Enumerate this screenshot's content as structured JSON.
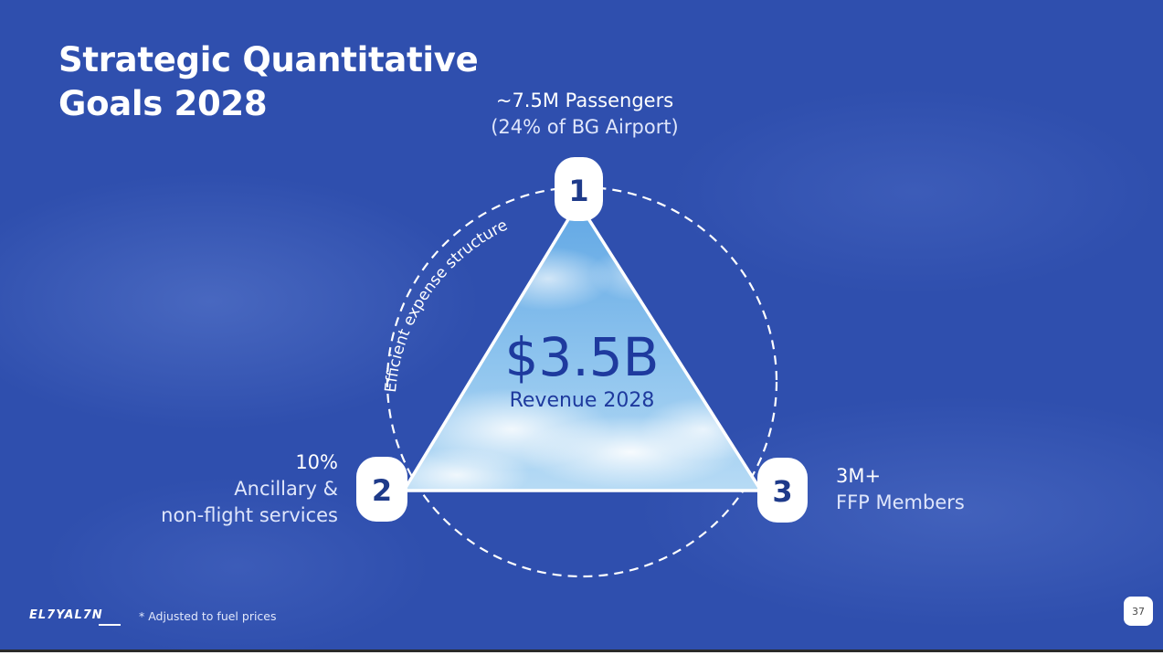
{
  "slide": {
    "title_lines": [
      "Strategic Quantitative",
      "Goals 2028"
    ],
    "center": {
      "value": "$3.5B",
      "label": "Revenue 2028"
    },
    "arc_label": "Efficient expense structure",
    "goals": [
      {
        "number": "1",
        "headline": "~7.5M Passengers",
        "detail": "(24% of BG Airport)"
      },
      {
        "number": "2",
        "headline": "10%",
        "detail_lines": [
          "Ancillary &",
          "non-flight services"
        ]
      },
      {
        "number": "3",
        "headline": "3M+",
        "detail": "FFP Members"
      }
    ],
    "footnote": "* Adjusted to fuel prices",
    "logo_text": "EL7YAL7N",
    "page_number": "37"
  },
  "colors": {
    "background": "#2f4fae",
    "center_text": "#1e3a9e",
    "badge_text": "#1e3a8a",
    "sky_light": "#9fcdf0",
    "sky_dark": "#5aa0e0"
  }
}
